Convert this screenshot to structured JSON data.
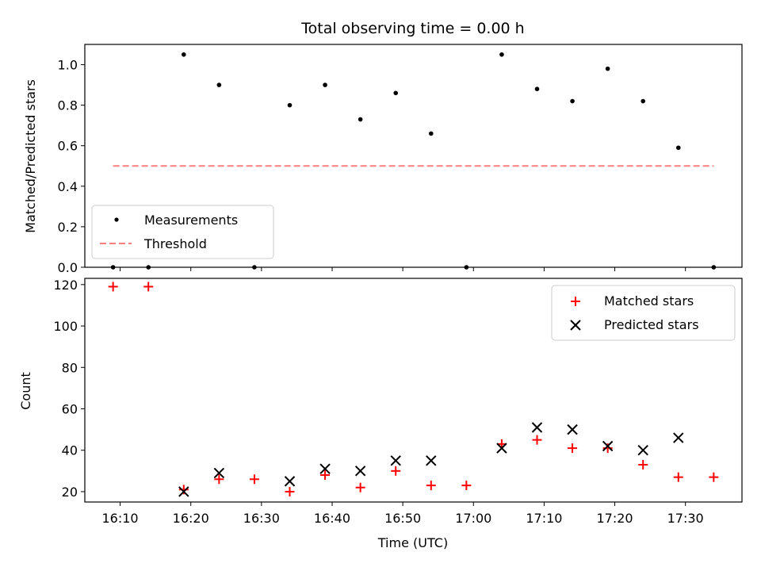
{
  "chart_data": [
    {
      "type": "scatter",
      "title": "Total observing time = 0.00 h",
      "xlabel": "",
      "ylabel": "Matched/Predicted stars",
      "xlim": [
        "16:05",
        "17:38"
      ],
      "ylim": [
        0.0,
        1.1
      ],
      "yticks": [
        "0.0",
        "0.2",
        "0.4",
        "0.6",
        "0.8",
        "1.0"
      ],
      "legend_position": "lower-left",
      "series": [
        {
          "name": "Measurements",
          "marker": "dot",
          "color": "#000000",
          "x": [
            "16:09",
            "16:14",
            "16:19",
            "16:24",
            "16:29",
            "16:34",
            "16:39",
            "16:44",
            "16:49",
            "16:54",
            "16:59",
            "17:04",
            "17:09",
            "17:14",
            "17:19",
            "17:24",
            "17:29",
            "17:34"
          ],
          "y": [
            0.0,
            0.0,
            1.05,
            0.9,
            0.0,
            0.8,
            0.9,
            0.73,
            0.86,
            0.66,
            0.0,
            1.05,
            0.88,
            0.82,
            0.98,
            0.82,
            0.59,
            0.0
          ]
        },
        {
          "name": "Threshold",
          "style": "dashed-line",
          "color": "#ff7f7f",
          "x": [
            "16:09",
            "17:34"
          ],
          "y": [
            0.5,
            0.5
          ]
        }
      ]
    },
    {
      "type": "scatter",
      "title": "",
      "xlabel": "Time (UTC)",
      "ylabel": "Count",
      "xlim": [
        "16:05",
        "17:38"
      ],
      "ylim": [
        15,
        123
      ],
      "xticks": [
        "16:10",
        "16:20",
        "16:30",
        "16:40",
        "16:50",
        "17:00",
        "17:10",
        "17:20",
        "17:30"
      ],
      "yticks": [
        "20",
        "40",
        "60",
        "80",
        "100",
        "120"
      ],
      "legend_position": "top-right",
      "series": [
        {
          "name": "Matched stars",
          "marker": "plus",
          "color": "#ff0000",
          "x": [
            "16:09",
            "16:14",
            "16:19",
            "16:24",
            "16:29",
            "16:34",
            "16:39",
            "16:44",
            "16:49",
            "16:54",
            "16:59",
            "17:04",
            "17:09",
            "17:14",
            "17:19",
            "17:24",
            "17:29",
            "17:34"
          ],
          "y": [
            119,
            119,
            21,
            26,
            26,
            20,
            28,
            22,
            30,
            23,
            23,
            43,
            45,
            41,
            41,
            33,
            27,
            27
          ]
        },
        {
          "name": "Predicted stars",
          "marker": "x",
          "color": "#000000",
          "x": [
            "16:19",
            "16:24",
            "16:34",
            "16:39",
            "16:44",
            "16:49",
            "16:54",
            "17:04",
            "17:09",
            "17:14",
            "17:19",
            "17:24",
            "17:29"
          ],
          "y": [
            20,
            29,
            25,
            31,
            30,
            35,
            35,
            41,
            51,
            50,
            42,
            40,
            46
          ]
        }
      ]
    }
  ]
}
